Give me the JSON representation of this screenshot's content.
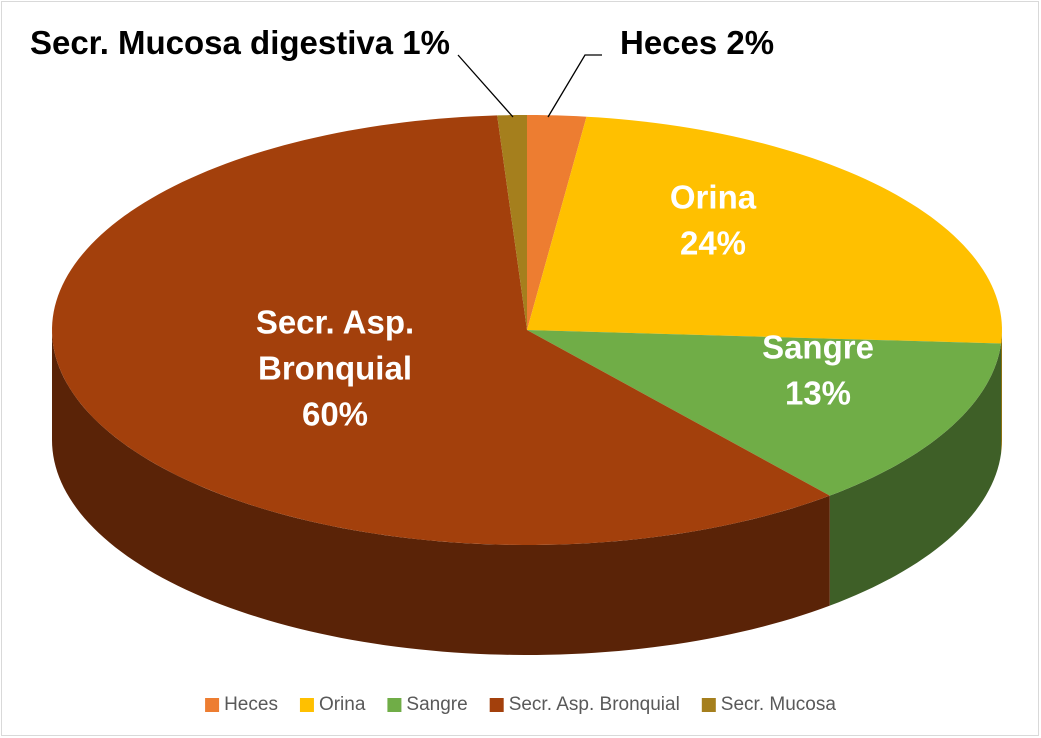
{
  "chart_data": {
    "type": "pie",
    "categories": [
      "Heces",
      "Orina",
      "Sangre",
      "Secr. Asp. Bronquial",
      "Secr. Mucosa"
    ],
    "values": [
      2,
      24,
      13,
      60,
      1
    ],
    "value_labels": [
      "2%",
      "24%",
      "13%",
      "60%",
      "1%"
    ],
    "label_lines": [
      [
        "Heces"
      ],
      [
        "Orina"
      ],
      [
        "Sangre"
      ],
      [
        "Secr. Asp.",
        "Bronquial"
      ],
      [
        "Secr. Mucosa digestiva"
      ]
    ],
    "colors": [
      "#ed7d31",
      "#ffc000",
      "#70ad47",
      "#a3400c",
      "#a57f1d"
    ],
    "legend": "bottom"
  }
}
